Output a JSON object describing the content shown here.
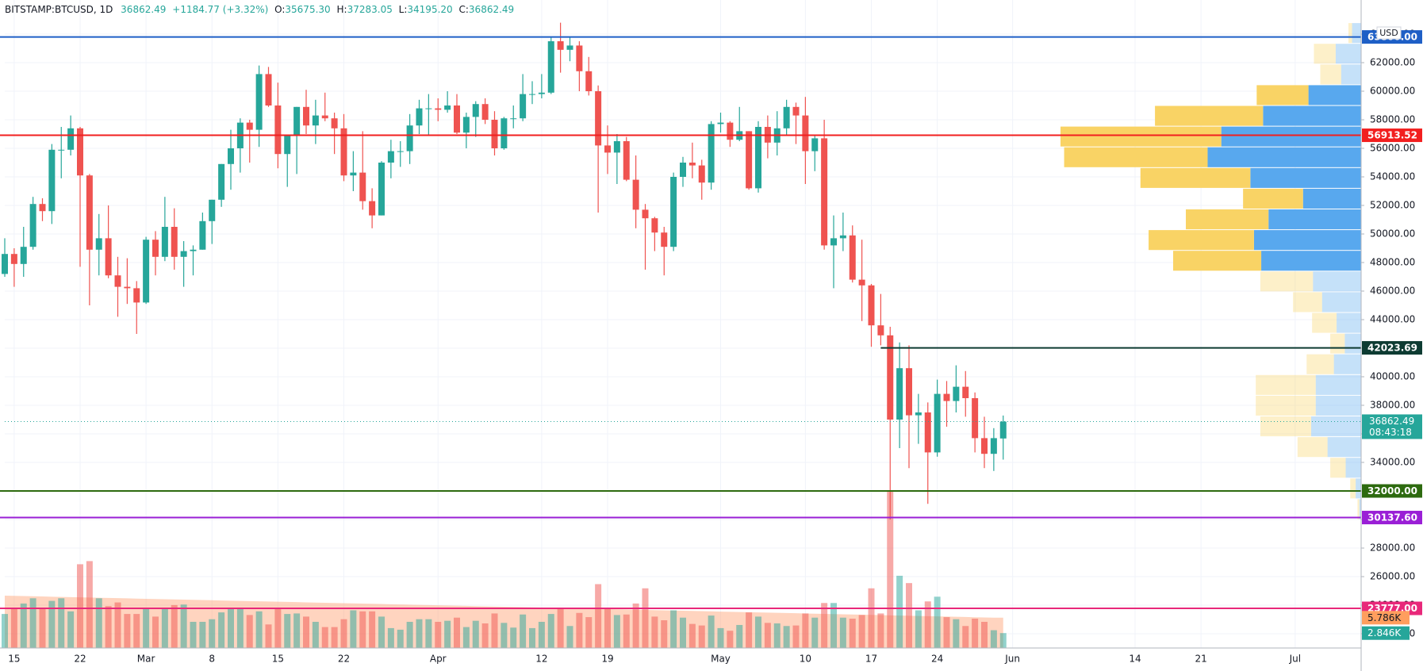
{
  "chart_data": {
    "type": "candlestick",
    "title": "BITSTAMP:BTCUSD, 1D",
    "header": {
      "last": "36862.49",
      "change": "+1184.77 (+3.32%)",
      "ohlc": [
        {
          "key": "O:",
          "value": "35675.30"
        },
        {
          "key": "H:",
          "value": "37283.05"
        },
        {
          "key": "L:",
          "value": "34195.20"
        },
        {
          "key": "C:",
          "value": "36862.49"
        }
      ]
    },
    "price_unit": "USD",
    "up_color": "#26a69a",
    "down_color": "#ef5350",
    "xlim": [
      0,
      144
    ],
    "xticks": [
      {
        "value": 1,
        "label": "15"
      },
      {
        "value": 8,
        "label": "22"
      },
      {
        "value": 15,
        "label": "Mar"
      },
      {
        "value": 22,
        "label": "8"
      },
      {
        "value": 29,
        "label": "15"
      },
      {
        "value": 36,
        "label": "22"
      },
      {
        "value": 46,
        "label": "Apr"
      },
      {
        "value": 57,
        "label": "12"
      },
      {
        "value": 64,
        "label": "19"
      },
      {
        "value": 76,
        "label": "May"
      },
      {
        "value": 85,
        "label": "10"
      },
      {
        "value": 92,
        "label": "17"
      },
      {
        "value": 99,
        "label": "24"
      },
      {
        "value": 107,
        "label": "Jun"
      },
      {
        "value": 120,
        "label": "14"
      },
      {
        "value": 127,
        "label": "21"
      },
      {
        "value": 137,
        "label": "Jul"
      }
    ],
    "ylim": [
      21000,
      65000
    ],
    "yticks": [
      {
        "value": 22000,
        "label": "22000.00"
      },
      {
        "value": 24000,
        "label": "24000.00"
      },
      {
        "value": 26000,
        "label": "26000.00"
      },
      {
        "value": 28000,
        "label": "28000.00"
      },
      {
        "value": 30000,
        "label": "30000.00"
      },
      {
        "value": 32000,
        "label": "32000.00"
      },
      {
        "value": 34000,
        "label": "34000.00"
      },
      {
        "value": 36000,
        "label": "36000.00"
      },
      {
        "value": 38000,
        "label": "38000.00"
      },
      {
        "value": 40000,
        "label": "40000.00"
      },
      {
        "value": 42000,
        "label": "42000.00"
      },
      {
        "value": 44000,
        "label": "44000.00"
      },
      {
        "value": 46000,
        "label": "46000.00"
      },
      {
        "value": 48000,
        "label": "48000.00"
      },
      {
        "value": 50000,
        "label": "50000.00"
      },
      {
        "value": 52000,
        "label": "52000.00"
      },
      {
        "value": 54000,
        "label": "54000.00"
      },
      {
        "value": 56000,
        "label": "56000.00"
      },
      {
        "value": 58000,
        "label": "58000.00"
      },
      {
        "value": 60000,
        "label": "60000.00"
      },
      {
        "value": 62000,
        "label": "62000.00"
      },
      {
        "value": 64000,
        "label": "64000.00"
      }
    ],
    "grid": true,
    "open": [
      47200,
      48600,
      47900,
      49100,
      52100,
      51600,
      55900,
      55900,
      57400,
      54100,
      48900,
      49700,
      47100,
      46300,
      46200,
      45200,
      49600,
      48400,
      50500,
      48400,
      48800,
      48900,
      50900,
      52400,
      54900,
      56000,
      57800,
      57300,
      61200,
      59000,
      55600,
      56900,
      58900,
      57600,
      58300,
      58100,
      57400,
      54100,
      54300,
      52300,
      51300,
      55000,
      55800,
      55800,
      57600,
      58800,
      58800,
      58700,
      59000,
      57100,
      58200,
      59100,
      58000,
      56000,
      58100,
      58100,
      59800,
      59800,
      59900,
      63500,
      62900,
      63200,
      61400,
      60000,
      56200,
      55700,
      56500,
      53800,
      51700,
      51100,
      50100,
      49100,
      54000,
      55000,
      54800,
      53600,
      57700,
      57800,
      56600,
      57200,
      53200,
      57500,
      56400,
      57400,
      58900,
      58300,
      55800,
      56700,
      49200,
      49700,
      49900,
      46800,
      46400,
      43600,
      42900,
      37000,
      40600,
      37300,
      37500,
      34700,
      38800,
      38300,
      39300,
      38500,
      35700,
      34600,
      35675.3
    ],
    "high": [
      49700,
      49000,
      50500,
      52600,
      52500,
      56300,
      57500,
      58300,
      57500,
      54200,
      51400,
      52000,
      48400,
      48300,
      46700,
      49800,
      50200,
      52600,
      51800,
      49500,
      49200,
      51500,
      52400,
      54900,
      57300,
      58100,
      58000,
      61800,
      61700,
      60600,
      56900,
      58900,
      60100,
      59400,
      59900,
      58500,
      58400,
      55800,
      57200,
      53200,
      55100,
      56600,
      56500,
      58400,
      59400,
      59800,
      59500,
      60000,
      59800,
      58500,
      59300,
      59500,
      58600,
      58200,
      59000,
      61200,
      60700,
      61200,
      63800,
      64800,
      63800,
      63500,
      62400,
      60400,
      57600,
      57000,
      56800,
      55500,
      52100,
      51200,
      50500,
      54300,
      55400,
      56400,
      55200,
      57900,
      58500,
      57900,
      58900,
      57200,
      57900,
      58300,
      58600,
      59400,
      59200,
      59600,
      56900,
      58000,
      51300,
      51500,
      50600,
      49600,
      46500,
      45800,
      43500,
      42400,
      42200,
      38800,
      38200,
      39800,
      39700,
      40800,
      40400,
      38900,
      37200,
      36400,
      37283.05
    ],
    "low": [
      47000,
      46300,
      47000,
      48900,
      50900,
      50700,
      53900,
      55500,
      47700,
      45000,
      47100,
      46900,
      44200,
      45100,
      43000,
      45100,
      47100,
      48100,
      47500,
      46300,
      47100,
      48900,
      49300,
      51900,
      53100,
      54300,
      55000,
      56100,
      58900,
      54600,
      53300,
      54200,
      57000,
      56300,
      57900,
      55600,
      53700,
      53000,
      51700,
      50400,
      51300,
      53900,
      54700,
      54900,
      57000,
      56900,
      57900,
      58500,
      57000,
      56000,
      56800,
      57700,
      55500,
      55900,
      57400,
      57900,
      59100,
      59500,
      59800,
      61300,
      62100,
      60000,
      59700,
      51500,
      54200,
      53500,
      53700,
      50400,
      47500,
      48800,
      47100,
      48800,
      53300,
      53900,
      52400,
      53100,
      57100,
      56100,
      56500,
      53100,
      52900,
      55300,
      55500,
      56900,
      56300,
      53500,
      54400,
      48900,
      46200,
      48800,
      46600,
      43900,
      42100,
      42200,
      30000,
      35000,
      33600,
      35300,
      31100,
      34400,
      36500,
      37500,
      37200,
      34700,
      33600,
      33400,
      34195.2
    ],
    "close": [
      48600,
      47900,
      49100,
      52100,
      51600,
      55900,
      55900,
      57400,
      54100,
      48900,
      49700,
      47100,
      46300,
      46200,
      45200,
      49600,
      48400,
      50500,
      48400,
      48800,
      48900,
      50900,
      52400,
      54900,
      56000,
      57800,
      57300,
      61200,
      59000,
      55600,
      56900,
      58900,
      57600,
      58300,
      58100,
      57400,
      54100,
      54300,
      52300,
      51300,
      55000,
      55800,
      55800,
      57600,
      58800,
      58800,
      58700,
      59000,
      57100,
      58200,
      59100,
      58000,
      56000,
      58100,
      58100,
      59800,
      59800,
      59900,
      63500,
      62900,
      63200,
      61400,
      60000,
      56200,
      55700,
      56500,
      53800,
      51700,
      51100,
      50100,
      49100,
      54000,
      55000,
      54800,
      53600,
      57700,
      57800,
      56600,
      57200,
      53200,
      57500,
      56400,
      57400,
      58900,
      58300,
      55800,
      56700,
      49200,
      49700,
      49900,
      46800,
      46400,
      43600,
      42900,
      37000,
      40600,
      37300,
      37500,
      34700,
      38800,
      38300,
      39300,
      38500,
      35700,
      34600,
      35700,
      36862.49
    ],
    "volume_ylim": [
      0,
      120000
    ],
    "volume": {
      "values": [
        6500,
        7500,
        8500,
        9500,
        7500,
        9000,
        9500,
        7000,
        16000,
        16600,
        9500,
        8000,
        8700,
        6500,
        6500,
        7500,
        6000,
        7500,
        8200,
        8300,
        5000,
        5000,
        5500,
        6800,
        7500,
        7500,
        6300,
        7000,
        4500,
        7500,
        6500,
        6600,
        6000,
        5000,
        4000,
        4000,
        5500,
        7200,
        7000,
        7000,
        6000,
        3800,
        3500,
        5000,
        5500,
        5500,
        5000,
        5200,
        5800,
        4000,
        5200,
        4700,
        6600,
        4800,
        3900,
        6400,
        3800,
        5000,
        6500,
        7500,
        4200,
        6700,
        5900,
        12200,
        7500,
        6300,
        6400,
        8500,
        11400,
        6000,
        5300,
        7200,
        5800,
        4600,
        4300,
        6200,
        3800,
        3300,
        4400,
        6800,
        6000,
        4800,
        4700,
        4200,
        4300,
        6600,
        5800,
        8600,
        8600,
        5800,
        5600,
        6300,
        11400,
        6600,
        30000,
        13800,
        12400,
        7200,
        8900,
        9800,
        5900,
        5500,
        4200,
        5600,
        5000,
        3400,
        2846
      ],
      "value_labels": {
        "106": "2.846K"
      }
    },
    "volume_ma": {
      "color": "#ffa070",
      "values": [
        10000,
        9960,
        9920,
        9880,
        9840,
        9800,
        9760,
        9720,
        9680,
        9640,
        9600,
        9560,
        9520,
        9480,
        9440,
        9400,
        9360,
        9320,
        9280,
        9240,
        9200,
        9160,
        9120,
        9080,
        9040,
        9000,
        8960,
        8920,
        8880,
        8840,
        8800,
        8760,
        8720,
        8680,
        8640,
        8600,
        8560,
        8520,
        8480,
        8440,
        8400,
        8360,
        8320,
        8280,
        8240,
        8200,
        8160,
        8120,
        8080,
        8040,
        8000,
        7960,
        7920,
        7880,
        7840,
        7800,
        7760,
        7720,
        7680,
        7640,
        7600,
        7560,
        7520,
        7480,
        7440,
        7400,
        7360,
        7320,
        7280,
        7240,
        7200,
        7160,
        7120,
        7080,
        7040,
        7000,
        6960,
        6920,
        6880,
        6840,
        6800,
        6760,
        6720,
        6680,
        6640,
        6600,
        6560,
        6520,
        6480,
        6440,
        6400,
        6360,
        6320,
        6280,
        6240,
        6200,
        6160,
        6120,
        6080,
        6040,
        6000,
        5960,
        5920,
        5880,
        5840,
        5800,
        5786
      ],
      "value_labels": {
        "106": "5.786K"
      }
    },
    "profile": {
      "lim": [
        30000,
        64800
      ],
      "value_area": [
        47400,
        60450
      ],
      "up_color": "#58a8ee",
      "down_color": "#f9d365",
      "up": [
        10,
        28,
        22,
        58,
        108,
        154,
        169,
        122,
        64,
        102,
        118,
        110,
        53,
        43,
        27,
        18,
        30,
        50,
        50,
        55,
        37,
        17,
        6,
        2
      ],
      "down": [
        4,
        24,
        23,
        57,
        119,
        177,
        158,
        121,
        66,
        91,
        116,
        97,
        58,
        32,
        27,
        16,
        30,
        66,
        66,
        56,
        33,
        17,
        6,
        2
      ]
    },
    "levels": [
      {
        "value": 63800,
        "label": "63800.00",
        "color": "#1e5fc6"
      },
      {
        "value": 56913.52,
        "label": "56913.52",
        "color": "#f21f1f"
      },
      {
        "value": 42023.69,
        "label": "42023.69",
        "color": "#0d3b32",
        "start": 93
      },
      {
        "value": 32000,
        "label": "32000.00",
        "color": "#2d6a0f"
      },
      {
        "value": 30137.6,
        "label": "30137.60",
        "color": "#9a1fd6"
      },
      {
        "value": 23777,
        "label": "23777.00",
        "color": "#e8287a"
      }
    ],
    "last": {
      "value": 36862.49,
      "label": "36862.49",
      "countdown": "08:43:18"
    }
  }
}
